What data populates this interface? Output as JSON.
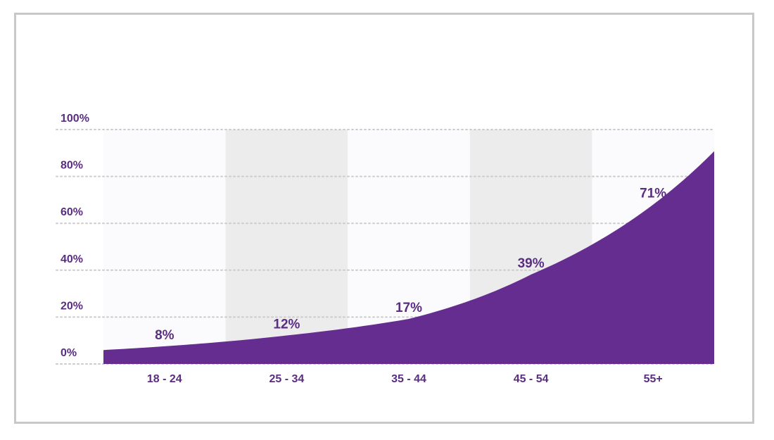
{
  "chart_data": {
    "type": "area",
    "categories": [
      "18 - 24",
      "25 - 34",
      "35 - 44",
      "45 - 54",
      "55+"
    ],
    "values": [
      8,
      12,
      17,
      39,
      71
    ],
    "data_labels": [
      "8%",
      "12%",
      "17%",
      "39%",
      "71%"
    ],
    "y_ticks": [
      {
        "value": 0,
        "label": "0%"
      },
      {
        "value": 20,
        "label": "20%"
      },
      {
        "value": 40,
        "label": "40%"
      },
      {
        "value": 60,
        "label": "60%"
      },
      {
        "value": 80,
        "label": "80%"
      },
      {
        "value": 100,
        "label": "100%"
      }
    ],
    "ylim": [
      0,
      100
    ],
    "title": "",
    "xlabel": "",
    "ylabel": "",
    "grid": true,
    "legend": "none",
    "colors": {
      "area": "#652d90",
      "text": "#5a2d82",
      "band_light": "#fbfafc",
      "band_dark": "#ececec",
      "gridline": "#cccccc",
      "frame": "#c8c8c8"
    }
  }
}
